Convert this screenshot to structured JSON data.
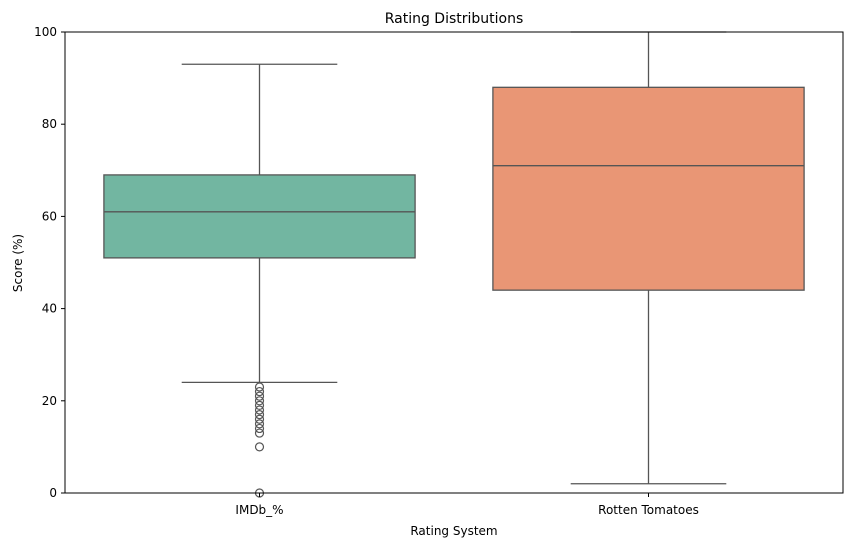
{
  "chart_data": {
    "type": "box",
    "title": "Rating Distributions",
    "xlabel": "Rating System",
    "ylabel": "Score (%)",
    "ylim": [
      0,
      100
    ],
    "yticks": [
      0,
      20,
      40,
      60,
      80,
      100
    ],
    "categories": [
      "IMDb_%",
      "Rotten Tomatoes"
    ],
    "boxes": [
      {
        "category": "IMDb_%",
        "color": "#72b6a1",
        "whisker_low": 24,
        "q1": 51,
        "median": 61,
        "q3": 69,
        "whisker_high": 93,
        "outliers": [
          0,
          10,
          13,
          14,
          15,
          16,
          17,
          18,
          19,
          20,
          21,
          22,
          23
        ]
      },
      {
        "category": "Rotten Tomatoes",
        "color": "#e99675",
        "whisker_low": 2,
        "q1": 44,
        "median": 71,
        "q3": 88,
        "whisker_high": 100,
        "outliers": []
      }
    ],
    "grid": false,
    "legend": "none"
  }
}
